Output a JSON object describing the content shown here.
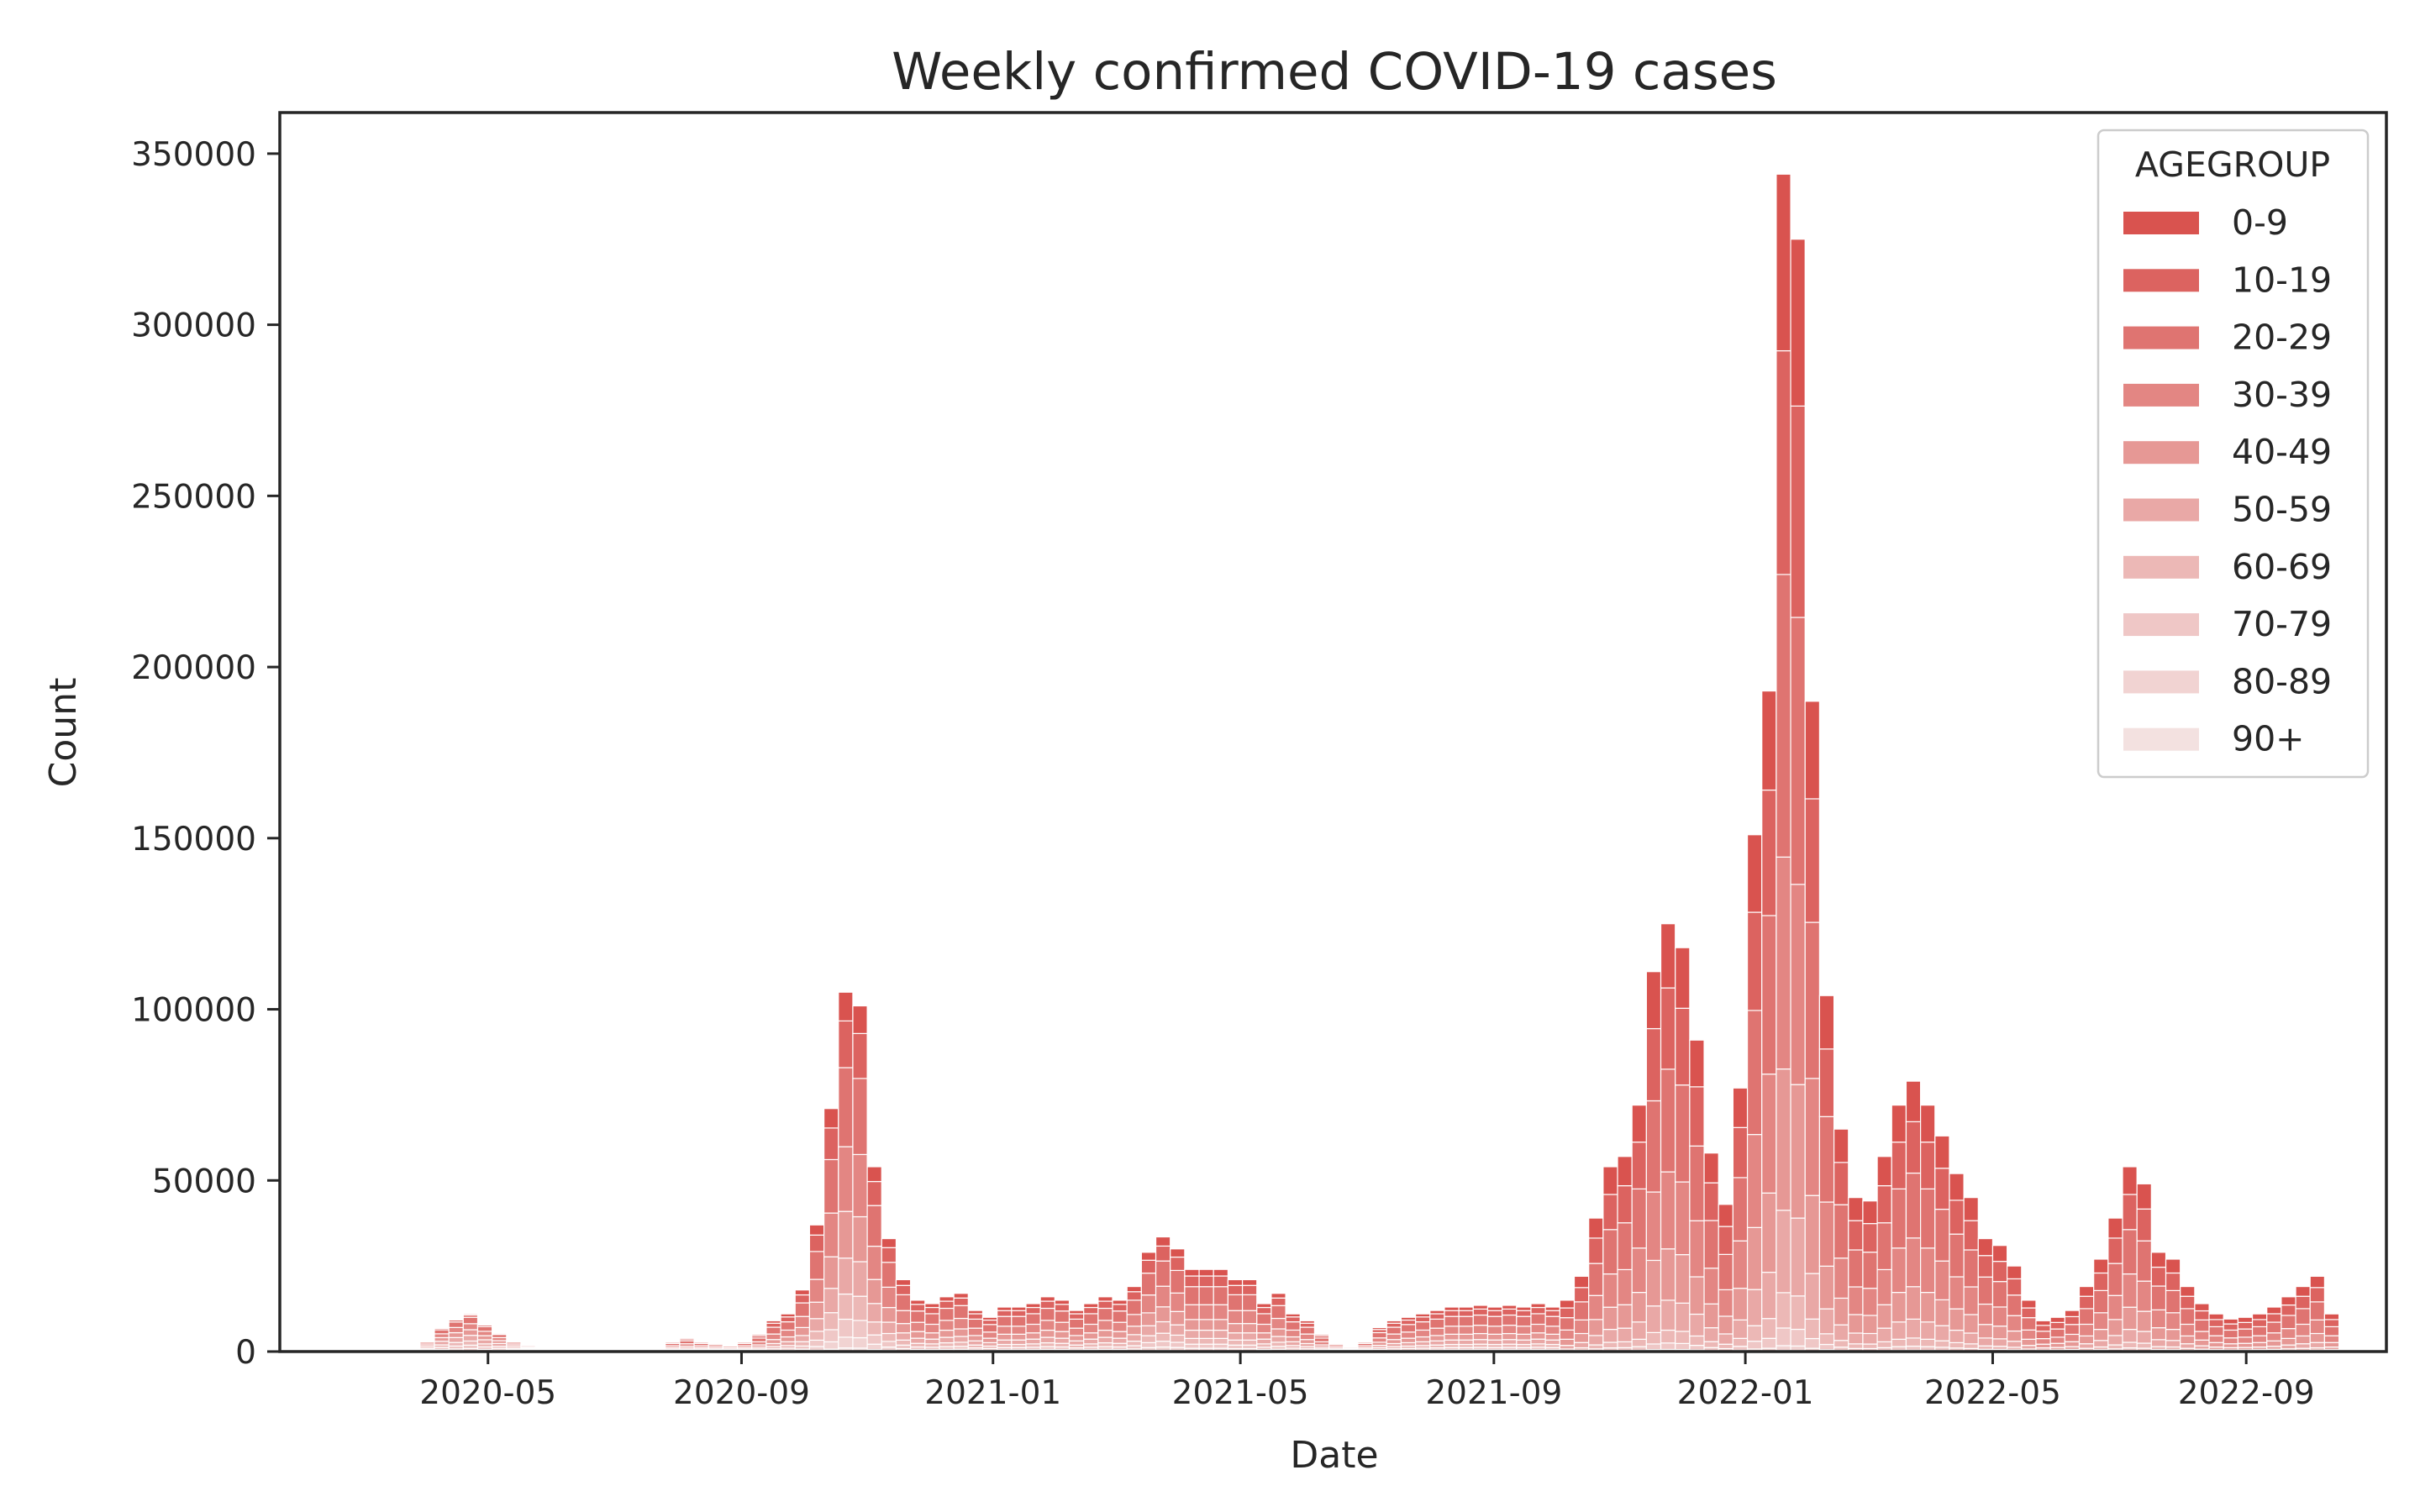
{
  "chart_data": {
    "type": "bar",
    "title": "Weekly confirmed COVID-19 cases",
    "xlabel": "Date",
    "ylabel": "Count",
    "stacked": true,
    "ylim": [
      0,
      362000
    ],
    "xlim": [
      "2020-01-21",
      "2022-11-08"
    ],
    "yticks": [
      0,
      50000,
      100000,
      150000,
      200000,
      250000,
      300000,
      350000
    ],
    "ytick_labels": [
      "0",
      "50000",
      "100000",
      "150000",
      "200000",
      "250000",
      "300000",
      "350000"
    ],
    "xticks": [
      "2020-05-01",
      "2020-09-01",
      "2021-01-01",
      "2021-05-01",
      "2021-09-01",
      "2022-01-01",
      "2022-05-01",
      "2022-09-01"
    ],
    "xtick_labels": [
      "2020-05",
      "2020-09",
      "2021-01",
      "2021-05",
      "2021-09",
      "2022-01",
      "2022-05",
      "2022-09"
    ],
    "grid": false,
    "legend": {
      "title": "AGEGROUP",
      "position": "top-right"
    },
    "bin_width_days": 7,
    "series": [
      {
        "name": "0-9",
        "color": "#d9534f"
      },
      {
        "name": "10-19",
        "color": "#dc6360"
      },
      {
        "name": "20-29",
        "color": "#df7471"
      },
      {
        "name": "30-39",
        "color": "#e38683"
      },
      {
        "name": "40-49",
        "color": "#e69895"
      },
      {
        "name": "50-59",
        "color": "#e9a8a6"
      },
      {
        "name": "60-69",
        "color": "#ecb8b6"
      },
      {
        "name": "70-79",
        "color": "#efc7c6"
      },
      {
        "name": "80-89",
        "color": "#f1d3d2"
      },
      {
        "name": "90+",
        "color": "#f3e1e0"
      }
    ],
    "bins": [
      {
        "week": "2020-03-29",
        "total": 3000
      },
      {
        "week": "2020-04-05",
        "total": 7000
      },
      {
        "week": "2020-04-12",
        "total": 9500
      },
      {
        "week": "2020-04-19",
        "total": 11000
      },
      {
        "week": "2020-04-26",
        "total": 8000
      },
      {
        "week": "2020-05-03",
        "total": 5500
      },
      {
        "week": "2020-05-10",
        "total": 3000
      },
      {
        "week": "2020-05-17",
        "total": 2000
      },
      {
        "week": "2020-07-26",
        "total": 3000
      },
      {
        "week": "2020-08-02",
        "total": 4000
      },
      {
        "week": "2020-08-09",
        "total": 3000
      },
      {
        "week": "2020-08-16",
        "total": 2500
      },
      {
        "week": "2020-08-23",
        "total": 2000
      },
      {
        "week": "2020-08-30",
        "total": 3000
      },
      {
        "week": "2020-09-06",
        "total": 5000
      },
      {
        "week": "2020-09-13",
        "total": 9000
      },
      {
        "week": "2020-09-20",
        "total": 11000
      },
      {
        "week": "2020-09-27",
        "total": 18000
      },
      {
        "week": "2020-10-04",
        "total": 37000
      },
      {
        "week": "2020-10-11",
        "total": 71000
      },
      {
        "week": "2020-10-18",
        "total": 105000
      },
      {
        "week": "2020-10-25",
        "total": 101000
      },
      {
        "week": "2020-11-01",
        "total": 54000
      },
      {
        "week": "2020-11-08",
        "total": 33000
      },
      {
        "week": "2020-11-15",
        "total": 21000
      },
      {
        "week": "2020-11-22",
        "total": 15000
      },
      {
        "week": "2020-11-29",
        "total": 14000
      },
      {
        "week": "2020-12-06",
        "total": 16000
      },
      {
        "week": "2020-12-13",
        "total": 17000
      },
      {
        "week": "2020-12-20",
        "total": 12000
      },
      {
        "week": "2020-12-27",
        "total": 10000
      },
      {
        "week": "2021-01-03",
        "total": 13000
      },
      {
        "week": "2021-01-10",
        "total": 13000
      },
      {
        "week": "2021-01-17",
        "total": 14000
      },
      {
        "week": "2021-01-24",
        "total": 16000
      },
      {
        "week": "2021-01-31",
        "total": 15000
      },
      {
        "week": "2021-02-07",
        "total": 12000
      },
      {
        "week": "2021-02-14",
        "total": 14000
      },
      {
        "week": "2021-02-21",
        "total": 16000
      },
      {
        "week": "2021-02-28",
        "total": 15000
      },
      {
        "week": "2021-03-07",
        "total": 19000
      },
      {
        "week": "2021-03-14",
        "total": 29000
      },
      {
        "week": "2021-03-21",
        "total": 33500
      },
      {
        "week": "2021-03-28",
        "total": 30000
      },
      {
        "week": "2021-04-04",
        "total": 24000
      },
      {
        "week": "2021-04-11",
        "total": 24000
      },
      {
        "week": "2021-04-18",
        "total": 24000
      },
      {
        "week": "2021-04-25",
        "total": 21000
      },
      {
        "week": "2021-05-02",
        "total": 21000
      },
      {
        "week": "2021-05-09",
        "total": 14000
      },
      {
        "week": "2021-05-16",
        "total": 17000
      },
      {
        "week": "2021-05-23",
        "total": 11000
      },
      {
        "week": "2021-05-30",
        "total": 9000
      },
      {
        "week": "2021-06-06",
        "total": 5000
      },
      {
        "week": "2021-06-13",
        "total": 2500
      },
      {
        "week": "2021-06-20",
        "total": 1500
      },
      {
        "week": "2021-06-27",
        "total": 3000
      },
      {
        "week": "2021-07-04",
        "total": 7000
      },
      {
        "week": "2021-07-11",
        "total": 9000
      },
      {
        "week": "2021-07-18",
        "total": 10000
      },
      {
        "week": "2021-07-25",
        "total": 11000
      },
      {
        "week": "2021-08-01",
        "total": 12000
      },
      {
        "week": "2021-08-08",
        "total": 13000
      },
      {
        "week": "2021-08-15",
        "total": 13000
      },
      {
        "week": "2021-08-22",
        "total": 13500
      },
      {
        "week": "2021-08-29",
        "total": 13000
      },
      {
        "week": "2021-09-05",
        "total": 13500
      },
      {
        "week": "2021-09-12",
        "total": 13000
      },
      {
        "week": "2021-09-19",
        "total": 14000
      },
      {
        "week": "2021-09-26",
        "total": 13000
      },
      {
        "week": "2021-10-03",
        "total": 15000
      },
      {
        "week": "2021-10-10",
        "total": 22000
      },
      {
        "week": "2021-10-17",
        "total": 39000
      },
      {
        "week": "2021-10-24",
        "total": 54000
      },
      {
        "week": "2021-10-31",
        "total": 57000
      },
      {
        "week": "2021-11-07",
        "total": 72000
      },
      {
        "week": "2021-11-14",
        "total": 111000
      },
      {
        "week": "2021-11-21",
        "total": 125000
      },
      {
        "week": "2021-11-28",
        "total": 118000
      },
      {
        "week": "2021-12-05",
        "total": 91000
      },
      {
        "week": "2021-12-12",
        "total": 58000
      },
      {
        "week": "2021-12-19",
        "total": 43000
      },
      {
        "week": "2021-12-26",
        "total": 77000
      },
      {
        "week": "2022-01-02",
        "total": 151000
      },
      {
        "week": "2022-01-09",
        "total": 193000
      },
      {
        "week": "2022-01-16",
        "total": 344000
      },
      {
        "week": "2022-01-23",
        "total": 325000
      },
      {
        "week": "2022-01-30",
        "total": 190000
      },
      {
        "week": "2022-02-06",
        "total": 104000
      },
      {
        "week": "2022-02-13",
        "total": 65000
      },
      {
        "week": "2022-02-20",
        "total": 45000
      },
      {
        "week": "2022-02-27",
        "total": 44000
      },
      {
        "week": "2022-03-06",
        "total": 57000
      },
      {
        "week": "2022-03-13",
        "total": 72000
      },
      {
        "week": "2022-03-20",
        "total": 79000
      },
      {
        "week": "2022-03-27",
        "total": 72000
      },
      {
        "week": "2022-04-03",
        "total": 63000
      },
      {
        "week": "2022-04-10",
        "total": 52000
      },
      {
        "week": "2022-04-17",
        "total": 45000
      },
      {
        "week": "2022-04-24",
        "total": 33000
      },
      {
        "week": "2022-05-01",
        "total": 31000
      },
      {
        "week": "2022-05-08",
        "total": 25000
      },
      {
        "week": "2022-05-15",
        "total": 15000
      },
      {
        "week": "2022-05-22",
        "total": 9000
      },
      {
        "week": "2022-05-29",
        "total": 10000
      },
      {
        "week": "2022-06-05",
        "total": 12000
      },
      {
        "week": "2022-06-12",
        "total": 19000
      },
      {
        "week": "2022-06-19",
        "total": 27000
      },
      {
        "week": "2022-06-26",
        "total": 39000
      },
      {
        "week": "2022-07-03",
        "total": 54000
      },
      {
        "week": "2022-07-10",
        "total": 49000
      },
      {
        "week": "2022-07-17",
        "total": 29000
      },
      {
        "week": "2022-07-24",
        "total": 27000
      },
      {
        "week": "2022-07-31",
        "total": 19000
      },
      {
        "week": "2022-08-07",
        "total": 14000
      },
      {
        "week": "2022-08-14",
        "total": 11000
      },
      {
        "week": "2022-08-21",
        "total": 9500
      },
      {
        "week": "2022-08-28",
        "total": 10000
      },
      {
        "week": "2022-09-04",
        "total": 11000
      },
      {
        "week": "2022-09-11",
        "total": 13000
      },
      {
        "week": "2022-09-18",
        "total": 16000
      },
      {
        "week": "2022-09-25",
        "total": 19000
      },
      {
        "week": "2022-10-02",
        "total": 22000
      },
      {
        "week": "2022-10-09",
        "total": 11000
      }
    ]
  }
}
